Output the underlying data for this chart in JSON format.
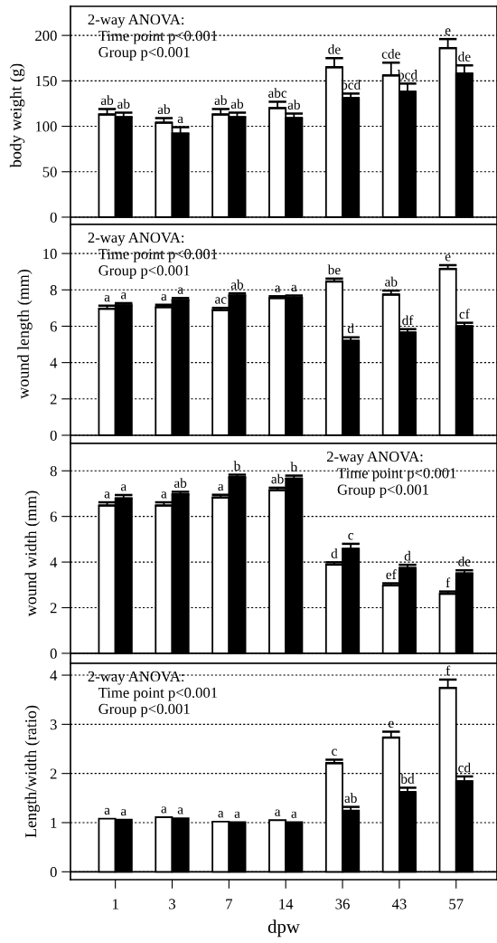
{
  "chart_data": [
    {
      "type": "bar",
      "ylabel": "body weight (g)",
      "categories": [
        "1",
        "3",
        "7",
        "14",
        "36",
        "43",
        "57"
      ],
      "ylim": [
        -8,
        232
      ],
      "yticks": [
        0,
        50,
        100,
        150,
        200
      ],
      "grid": "y",
      "tick_labels": "y",
      "legend": false,
      "annotations": [
        "2-way ANOVA:",
        "Time point p<0.001",
        "Group p<0.001"
      ],
      "ref_lines": [
        {
          "axis": "y",
          "value": 0,
          "color": "#000000",
          "line_style": "solid"
        }
      ],
      "series": [
        {
          "color": "#ffffff",
          "values": [
            113,
            104,
            113,
            120,
            165,
            156,
            186
          ],
          "errors": [
            6,
            5,
            6,
            7,
            10,
            14,
            10
          ],
          "value_labels": [
            "ab",
            "ab",
            "ab",
            "abc",
            "de",
            "cde",
            "e"
          ]
        },
        {
          "color": "#000000",
          "values": [
            110,
            92,
            110,
            109,
            131,
            138,
            158
          ],
          "errors": [
            5,
            7,
            5,
            5,
            5,
            9,
            9
          ],
          "value_labels": [
            "ab",
            "a",
            "ab",
            "ab",
            "bcd",
            "bcd",
            "de"
          ]
        }
      ]
    },
    {
      "type": "bar",
      "ylabel": "wound length (mm)",
      "categories": [
        "1",
        "3",
        "7",
        "14",
        "36",
        "43",
        "57"
      ],
      "ylim": [
        -0.45,
        11.6
      ],
      "yticks": [
        0,
        2,
        4,
        6,
        8,
        10
      ],
      "grid": "y",
      "tick_labels": "y",
      "legend": false,
      "annotations": [
        "2-way ANOVA:",
        "Time point p<0.001",
        "Group p<0.001"
      ],
      "ref_lines": [
        {
          "axis": "y",
          "value": 0,
          "color": "#000000",
          "line_style": "solid"
        }
      ],
      "series": [
        {
          "color": "#ffffff",
          "values": [
            6.96,
            7.05,
            6.89,
            7.55,
            8.46,
            7.74,
            9.15
          ],
          "errors": [
            0.17,
            0.13,
            0.12,
            0.1,
            0.16,
            0.22,
            0.21
          ],
          "value_labels": [
            "a",
            "a",
            "ac",
            "a",
            "be",
            "ab",
            "e"
          ]
        },
        {
          "color": "#000000",
          "values": [
            7.15,
            7.44,
            7.69,
            7.58,
            5.2,
            5.65,
            6.0
          ],
          "errors": [
            0.12,
            0.11,
            0.12,
            0.11,
            0.19,
            0.19,
            0.19
          ],
          "value_labels": [
            "a",
            "a",
            "ab",
            "a",
            "d",
            "df",
            "cf"
          ]
        }
      ]
    },
    {
      "type": "bar",
      "ylabel": "wound width (mm)",
      "categories": [
        "1",
        "3",
        "7",
        "14",
        "36",
        "43",
        "57"
      ],
      "ylim": [
        -0.44,
        9.2
      ],
      "yticks": [
        0,
        2,
        4,
        6,
        8
      ],
      "grid": "y",
      "tick_labels": "y",
      "legend": false,
      "annotations": [
        "2-way ANOVA:",
        "Time point p<0.001",
        "Group p<0.001"
      ],
      "ref_lines": [
        {
          "axis": "y",
          "value": 0,
          "color": "#000000",
          "line_style": "solid"
        }
      ],
      "series": [
        {
          "color": "#ffffff",
          "values": [
            6.48,
            6.48,
            6.83,
            7.15,
            3.89,
            2.98,
            2.61
          ],
          "errors": [
            0.14,
            0.14,
            0.12,
            0.11,
            0.1,
            0.09,
            0.1
          ],
          "value_labels": [
            "a",
            "a",
            "a",
            "ab",
            "d",
            "ef",
            "f"
          ]
        },
        {
          "color": "#000000",
          "values": [
            6.79,
            6.97,
            7.72,
            7.66,
            4.58,
            3.74,
            3.5
          ],
          "errors": [
            0.15,
            0.11,
            0.11,
            0.13,
            0.22,
            0.14,
            0.14
          ],
          "value_labels": [
            "a",
            "ab",
            "b",
            "b",
            "c",
            "d",
            "de"
          ]
        }
      ]
    },
    {
      "type": "bar",
      "ylabel": "Length/width (ratio)",
      "xlabel": "dpw",
      "categories": [
        "1",
        "3",
        "7",
        "14",
        "36",
        "43",
        "57"
      ],
      "ylim": [
        -0.16,
        4.24
      ],
      "yticks": [
        0,
        1,
        2,
        3,
        4
      ],
      "grid": "y",
      "legend": false,
      "annotations": [
        "2-way ANOVA:",
        "Time point p<0.001",
        "Group p<0.001"
      ],
      "ref_lines": [
        {
          "axis": "y",
          "value": 0,
          "color": "#000000",
          "line_style": "solid"
        }
      ],
      "series": [
        {
          "color": "#ffffff",
          "values": [
            1.08,
            1.11,
            1.02,
            1.05,
            2.21,
            2.73,
            3.74
          ],
          "errors": [
            null,
            null,
            null,
            null,
            0.07,
            0.12,
            0.17
          ],
          "value_labels": [
            "a",
            "a",
            "a",
            "a",
            "c",
            "e",
            "f"
          ]
        },
        {
          "color": "#000000",
          "values": [
            1.06,
            1.09,
            1.01,
            1.01,
            1.24,
            1.62,
            1.84
          ],
          "errors": [
            null,
            null,
            null,
            null,
            0.08,
            0.09,
            0.1
          ],
          "value_labels": [
            "a",
            "a",
            "a",
            "a",
            "ab",
            "bd",
            "cd"
          ]
        }
      ]
    }
  ]
}
